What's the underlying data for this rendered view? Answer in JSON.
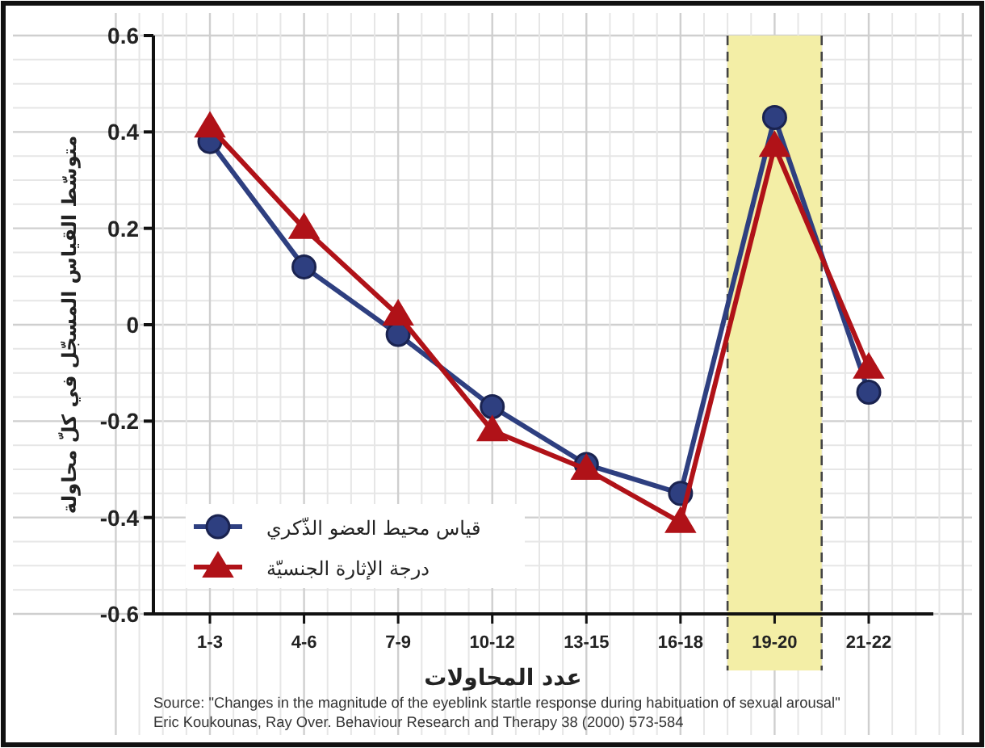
{
  "chart_data": {
    "type": "line",
    "xlabel": "عدد المحاولات",
    "ylabel": "متوسّط القياس المسجّل في كلّ محاولة",
    "categories": [
      "1-3",
      "4-6",
      "7-9",
      "10-12",
      "13-15",
      "16-18",
      "19-20",
      "21-22"
    ],
    "series": [
      {
        "name": "قياس محيط العضو الذّكري",
        "color": "#2e3f80",
        "marker": "circle",
        "values": [
          0.38,
          0.12,
          -0.02,
          -0.17,
          -0.29,
          -0.35,
          0.43,
          -0.14
        ]
      },
      {
        "name": "درجة الإثارة الجنسيّة",
        "color": "#b01218",
        "marker": "triangle",
        "values": [
          0.41,
          0.2,
          0.02,
          -0.22,
          -0.3,
          -0.41,
          0.37,
          -0.09
        ]
      }
    ],
    "ylim": [
      -0.6,
      0.6
    ],
    "yticks": [
      0.6,
      0.4,
      0.2,
      0,
      -0.2,
      -0.4,
      -0.6
    ],
    "bands": [
      {
        "axis": "x",
        "from": "19-20",
        "to": "19-20",
        "color": "#f3eea6"
      }
    ],
    "grid": true,
    "legend": "bottom left",
    "annotations": [
      "Source: \"Changes in the magnitude of the eyeblink startle response during habituation of sexual arousal\"",
      "Eric Koukounas, Ray Over. Behaviour Research and Therapy 38 (2000) 573-584"
    ]
  }
}
